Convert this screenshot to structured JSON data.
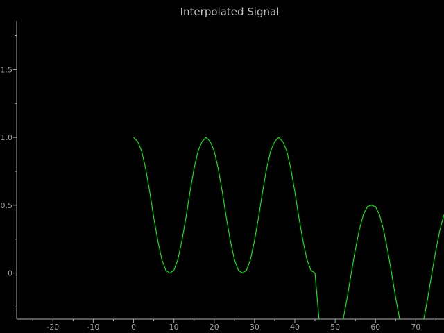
{
  "chart_data": {
    "type": "line",
    "title": "Interpolated Signal",
    "xlabel": "",
    "ylabel": "",
    "xlim": [
      -29,
      77
    ],
    "ylim": [
      -0.34,
      1.86
    ],
    "grid": false,
    "x_ticks": [
      -20,
      -10,
      0,
      10,
      20,
      30,
      40,
      50,
      60,
      70
    ],
    "y_ticks": [
      0,
      0.5,
      1.0,
      1.5
    ],
    "y_tick_labels": [
      "0",
      "0.5",
      "1.0",
      "1.5"
    ],
    "series": [
      {
        "name": "",
        "color": "#00ff00",
        "x": [
          0,
          1,
          2,
          3,
          4,
          5,
          6,
          7,
          8,
          9,
          10,
          11,
          12,
          13,
          14,
          15,
          16,
          17,
          18,
          19,
          20,
          21,
          22,
          23,
          24,
          25,
          26,
          27,
          28,
          29,
          30,
          31,
          32,
          33,
          34,
          35,
          36,
          37,
          38,
          39,
          40,
          41,
          42,
          43,
          44,
          45,
          46,
          47,
          48,
          49,
          50,
          51,
          52,
          53,
          54,
          55,
          56,
          57,
          58,
          59,
          60,
          61,
          62,
          63,
          64,
          65,
          66,
          67,
          68,
          69,
          70,
          71,
          72,
          73,
          74,
          75,
          76,
          77
        ],
        "y": [
          1.0,
          0.97,
          0.9,
          0.77,
          0.6,
          0.41,
          0.24,
          0.1,
          0.02,
          0.0,
          0.02,
          0.1,
          0.24,
          0.41,
          0.6,
          0.77,
          0.9,
          0.97,
          1.0,
          0.97,
          0.9,
          0.77,
          0.6,
          0.41,
          0.24,
          0.1,
          0.02,
          0.0,
          0.02,
          0.1,
          0.24,
          0.41,
          0.6,
          0.77,
          0.9,
          0.97,
          1.0,
          0.97,
          0.9,
          0.77,
          0.6,
          0.41,
          0.24,
          0.1,
          0.02,
          0.0,
          -0.34,
          -0.5,
          -0.5,
          -0.5,
          -0.5,
          -0.5,
          -0.34,
          -0.18,
          0.0,
          0.17,
          0.32,
          0.43,
          0.49,
          0.5,
          0.49,
          0.43,
          0.32,
          0.17,
          0.0,
          -0.18,
          -0.34,
          -0.5,
          -0.5,
          -0.5,
          -0.5,
          -0.5,
          -0.34,
          -0.18,
          0.0,
          0.17,
          0.32,
          0.43
        ]
      }
    ]
  }
}
